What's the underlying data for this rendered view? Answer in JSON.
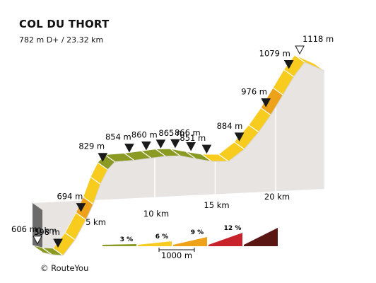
{
  "title": "COL DU THORT",
  "subtitle": "782 m D+ / 23.32 km",
  "credit": "© RouteYou",
  "colors": {
    "grade_1": "#8a9a22",
    "grade_2": "#f7cc1e",
    "grade_3": "#eda21a",
    "grade_4": "#c8222a",
    "grade_5": "#5a1612",
    "ground": "#e7e4e2",
    "marker": "#1a1a1a"
  },
  "chart_data": {
    "type": "area",
    "title": "COL DU THORT",
    "subtitle": "782 m D+ / 23.32 km",
    "distance_total_km": 23.32,
    "elevation_gain_m": 782,
    "profile": [
      {
        "km": 0.0,
        "elev": 606
      },
      {
        "km": 0.8,
        "elev": 600
      },
      {
        "km": 1.7,
        "elev": 598
      },
      {
        "km": 2.7,
        "elev": 640
      },
      {
        "km": 3.6,
        "elev": 694
      },
      {
        "km": 4.2,
        "elev": 736
      },
      {
        "km": 4.8,
        "elev": 790
      },
      {
        "km": 5.4,
        "elev": 829
      },
      {
        "km": 6.0,
        "elev": 850
      },
      {
        "km": 7.6,
        "elev": 854
      },
      {
        "km": 9.0,
        "elev": 860
      },
      {
        "km": 10.2,
        "elev": 865
      },
      {
        "km": 11.4,
        "elev": 866
      },
      {
        "km": 12.7,
        "elev": 858
      },
      {
        "km": 14.0,
        "elev": 851
      },
      {
        "km": 15.4,
        "elev": 851
      },
      {
        "km": 16.7,
        "elev": 884
      },
      {
        "km": 17.9,
        "elev": 930
      },
      {
        "km": 18.9,
        "elev": 976
      },
      {
        "km": 19.9,
        "elev": 1030
      },
      {
        "km": 20.8,
        "elev": 1079
      },
      {
        "km": 21.7,
        "elev": 1118
      },
      {
        "km": 23.32,
        "elev": 1095
      }
    ],
    "segment_grade_classes": [
      1,
      1,
      2,
      2,
      3,
      2,
      2,
      1,
      1,
      1,
      1,
      1,
      1,
      1,
      2,
      2,
      2,
      2,
      3,
      2,
      2,
      2
    ],
    "elevation_labels": [
      {
        "km": 0.0,
        "elev": 606,
        "text": "606 m",
        "marker": "open",
        "dx": -37
      },
      {
        "km": 1.7,
        "elev": 598,
        "text": "598 m",
        "marker": "filled",
        "dx": -34
      },
      {
        "km": 3.6,
        "elev": 694,
        "text": "694 m",
        "marker": "filled",
        "dx": -34
      },
      {
        "km": 5.4,
        "elev": 829,
        "text": "829 m",
        "marker": "filled",
        "dx": -34
      },
      {
        "km": 7.6,
        "elev": 854,
        "text": "854 m",
        "marker": "filled",
        "dx": -34
      },
      {
        "km": 9.0,
        "elev": 860,
        "text": "860 m",
        "marker": "filled",
        "dx": -21
      },
      {
        "km": 10.2,
        "elev": 865,
        "text": "865 m",
        "marker": "filled",
        "dx": -3
      },
      {
        "km": 11.4,
        "elev": 866,
        "text": "866 m",
        "marker": "filled",
        "dx": -1
      },
      {
        "km": 12.7,
        "elev": 858,
        "text": "",
        "marker": "filled",
        "dx": 0
      },
      {
        "km": 14.0,
        "elev": 851,
        "text": "851 m",
        "marker": "filled",
        "dx": -38
      },
      {
        "km": 16.7,
        "elev": 884,
        "text": "884 m",
        "marker": "filled",
        "dx": -32
      },
      {
        "km": 18.9,
        "elev": 976,
        "text": "976 m",
        "marker": "filled",
        "dx": -35
      },
      {
        "km": 20.8,
        "elev": 1079,
        "text": "1079 m",
        "marker": "filled",
        "dx": -42
      },
      {
        "km": 21.7,
        "elev": 1118,
        "text": "1118 m",
        "marker": "open",
        "dx": 4
      }
    ],
    "km_ticks": [
      {
        "km": 0,
        "label": "0 km"
      },
      {
        "km": 5,
        "label": "5 km"
      },
      {
        "km": 10,
        "label": "10 km"
      },
      {
        "km": 15,
        "label": "15 km"
      },
      {
        "km": 20,
        "label": "20 km"
      }
    ],
    "legend": {
      "items": [
        {
          "label": "3 %",
          "grade_class": 1
        },
        {
          "label": "6 %",
          "grade_class": 2
        },
        {
          "label": "9 %",
          "grade_class": 3
        },
        {
          "label": "12 %",
          "grade_class": 4
        },
        {
          "label": "",
          "grade_class": 5
        }
      ],
      "scale_label": "1000 m"
    }
  }
}
